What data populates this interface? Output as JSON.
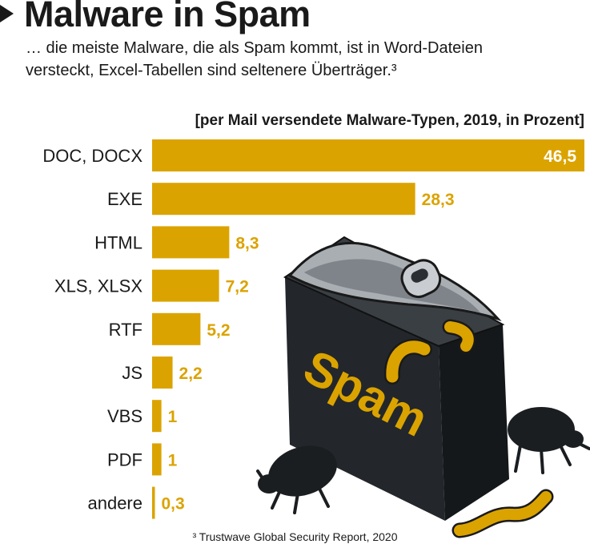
{
  "title": "Malware in Spam",
  "subtitle": "… die meiste Malware, die als Spam kommt, ist in Word-Dateien versteckt, Excel-Tabellen sind seltenere Überträger.³",
  "footnote": "³ Trustwave Global Security Report, 2020",
  "illustration_text": "Spam",
  "colors": {
    "bar": "#dba300",
    "text": "#1a1a1a",
    "inside_label": "#ffffff",
    "can": "#23272b"
  },
  "chart_data": {
    "type": "bar",
    "orientation": "horizontal",
    "axis_caption": "[per Mail versendete Malware-Typen, 2019, in Prozent]",
    "categories": [
      "DOC, DOCX",
      "EXE",
      "HTML",
      "XLS, XLSX",
      "RTF",
      "JS",
      "VBS",
      "PDF",
      "andere"
    ],
    "values": [
      46.5,
      28.3,
      8.3,
      7.2,
      5.2,
      2.2,
      1,
      1,
      0.3
    ],
    "value_labels": [
      "46,5",
      "28,3",
      "8,3",
      "7,2",
      "5,2",
      "2,2",
      "1",
      "1",
      "0,3"
    ],
    "xlim": [
      0,
      46.5
    ],
    "grid": false,
    "legend": "none"
  }
}
